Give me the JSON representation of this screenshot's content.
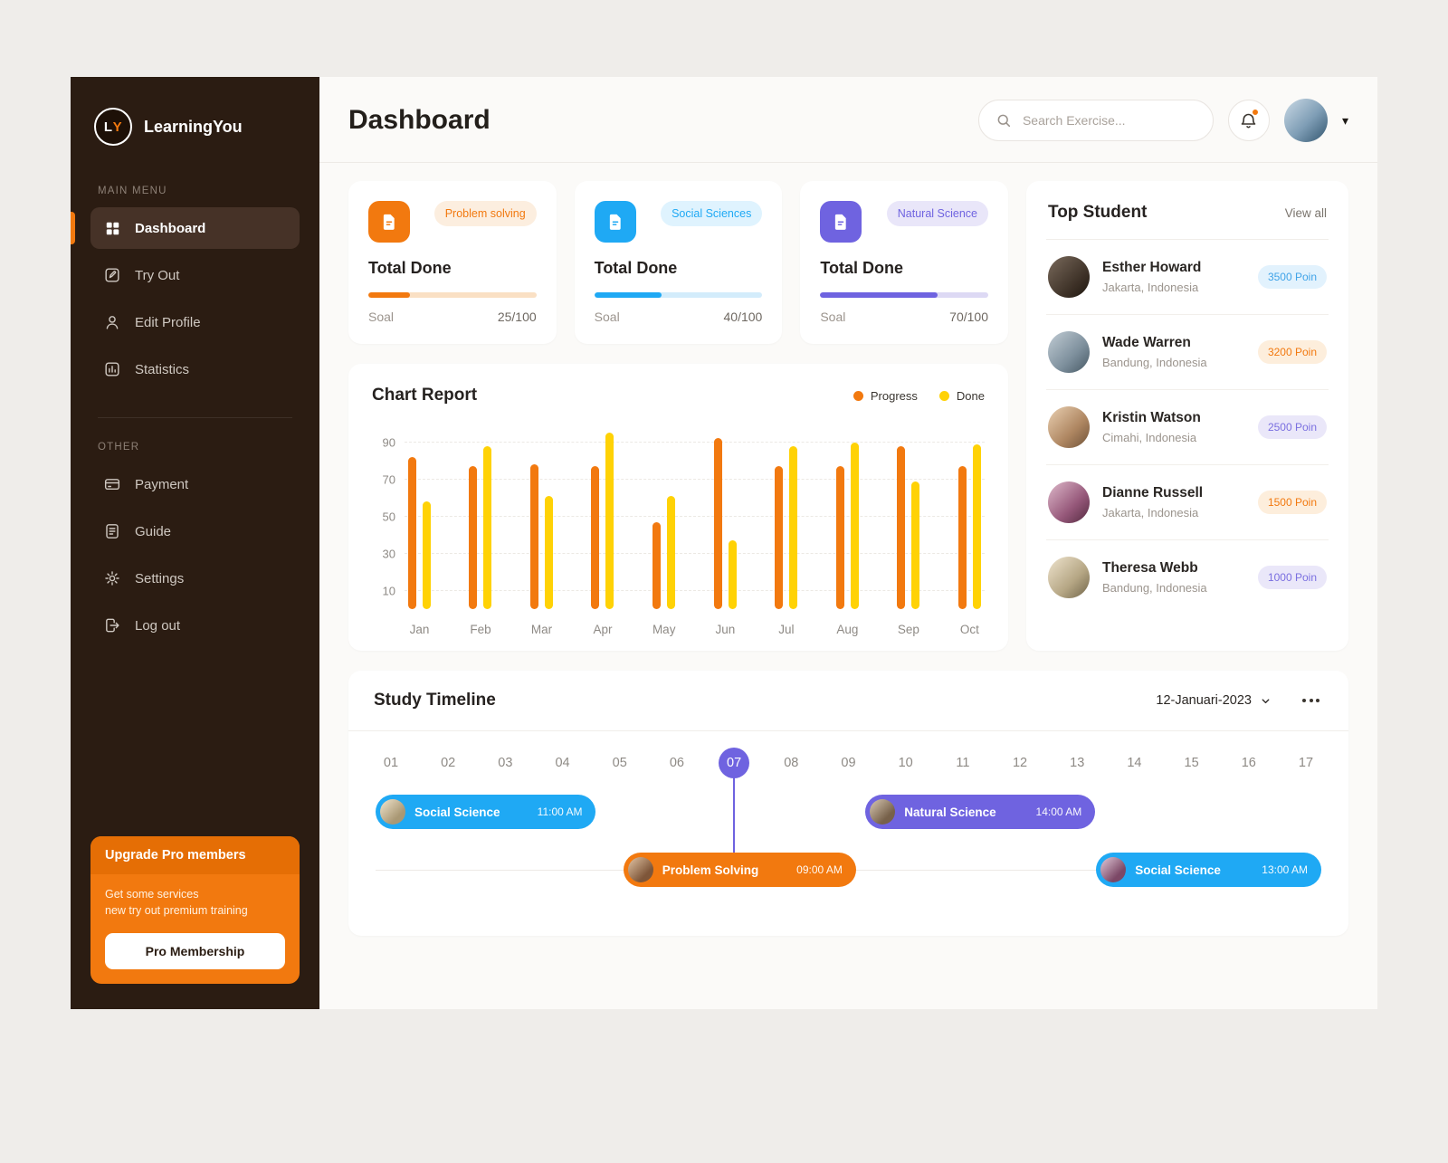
{
  "brand": {
    "logo_l": "L",
    "logo_y": "Y",
    "name": "LearningYou"
  },
  "sidebar": {
    "sections": [
      {
        "label": "MAIN MENU",
        "items": [
          {
            "label": "Dashboard",
            "icon": "grid-icon",
            "active": true
          },
          {
            "label": "Try Out",
            "icon": "pencil-square-icon",
            "active": false
          },
          {
            "label": "Edit Profile",
            "icon": "user-icon",
            "active": false
          },
          {
            "label": "Statistics",
            "icon": "stats-icon",
            "active": false
          }
        ]
      },
      {
        "label": "OTHER",
        "items": [
          {
            "label": "Payment",
            "icon": "wallet-icon",
            "active": false
          },
          {
            "label": "Guide",
            "icon": "book-icon",
            "active": false
          },
          {
            "label": "Settings",
            "icon": "gear-icon",
            "active": false
          },
          {
            "label": "Log out",
            "icon": "logout-icon",
            "active": false
          }
        ]
      }
    ],
    "upgrade": {
      "title": "Upgrade Pro members",
      "line1": "Get some services",
      "line2": "new try out premium training",
      "button": "Pro Membership"
    }
  },
  "header": {
    "title": "Dashboard",
    "search_placeholder": "Search Exercise..."
  },
  "stat_cards": [
    {
      "badge": "Problem solving",
      "title": "Total Done",
      "soal_label": "Soal",
      "value": "25/100",
      "progress": 25,
      "color": "#F2790F",
      "badge_bg": "#FCEEDF",
      "track": "#FAE0C4"
    },
    {
      "badge": "Social Sciences",
      "title": "Total Done",
      "soal_label": "Soal",
      "value": "40/100",
      "progress": 40,
      "color": "#1FA9F4",
      "badge_bg": "#DFF3FE",
      "track": "#D3ECFB"
    },
    {
      "badge": "Natural Science",
      "title": "Total Done",
      "soal_label": "Soal",
      "value": "70/100",
      "progress": 70,
      "color": "#6F63E0",
      "badge_bg": "#E9E6F9",
      "track": "#DDD9F4"
    }
  ],
  "chart_data": {
    "type": "bar",
    "title": "Chart Report",
    "categories": [
      "Jan",
      "Feb",
      "Mar",
      "Apr",
      "May",
      "Jun",
      "Jul",
      "Aug",
      "Sep",
      "Oct"
    ],
    "series": [
      {
        "name": "Progress",
        "color": "#F2790F",
        "values": [
          82,
          77,
          78,
          77,
          47,
          92,
          77,
          77,
          88,
          77
        ]
      },
      {
        "name": "Done",
        "color": "#FFD205",
        "values": [
          58,
          88,
          61,
          95,
          61,
          37,
          88,
          90,
          69,
          89
        ]
      }
    ],
    "yticks": [
      10,
      30,
      50,
      70,
      90
    ],
    "ylim": [
      0,
      100
    ],
    "grid": "dashed-horizontal",
    "legend_position": "top-right"
  },
  "top_student": {
    "title": "Top Student",
    "view_all": "View all",
    "students": [
      {
        "name": "Esther Howard",
        "location": "Jakarta, Indonesia",
        "points": "3500 Poin",
        "badge_color": "#3FA3E8",
        "badge_bg": "#E2F2FD"
      },
      {
        "name": "Wade Warren",
        "location": "Bandung, Indonesia",
        "points": "3200 Poin",
        "badge_color": "#F2790F",
        "badge_bg": "#FDEEDC"
      },
      {
        "name": "Kristin Watson",
        "location": "Cimahi, Indonesia",
        "points": "2500 Poin",
        "badge_color": "#7A6FE0",
        "badge_bg": "#EAE7F9"
      },
      {
        "name": "Dianne Russell",
        "location": "Jakarta, Indonesia",
        "points": "1500 Poin",
        "badge_color": "#F2790F",
        "badge_bg": "#FDEEDC"
      },
      {
        "name": "Theresa Webb",
        "location": "Bandung, Indonesia",
        "points": "1000 Poin",
        "badge_color": "#7A6FE0",
        "badge_bg": "#EAE7F9"
      }
    ]
  },
  "timeline": {
    "title": "Study Timeline",
    "date_label": "12-Januari-2023",
    "days": [
      "01",
      "02",
      "03",
      "04",
      "05",
      "06",
      "07",
      "08",
      "09",
      "10",
      "11",
      "12",
      "13",
      "14",
      "15",
      "16",
      "17"
    ],
    "active_day": "07",
    "events": [
      {
        "label": "Social Science",
        "time": "11:00 AM",
        "color": "#1FA9F4",
        "row": 1,
        "left_pct": 0,
        "width_pct": 23.3
      },
      {
        "label": "Natural Science",
        "time": "14:00 AM",
        "color": "#6F63E0",
        "row": 1,
        "left_pct": 51.8,
        "width_pct": 24.3
      },
      {
        "label": "Problem Solving",
        "time": "09:00 AM",
        "color": "#F2790F",
        "row": 2,
        "left_pct": 26.2,
        "width_pct": 24.6
      },
      {
        "label": "Social Science",
        "time": "13:00 AM",
        "color": "#1FA9F4",
        "row": 2,
        "left_pct": 76.2,
        "width_pct": 23.8
      }
    ]
  }
}
